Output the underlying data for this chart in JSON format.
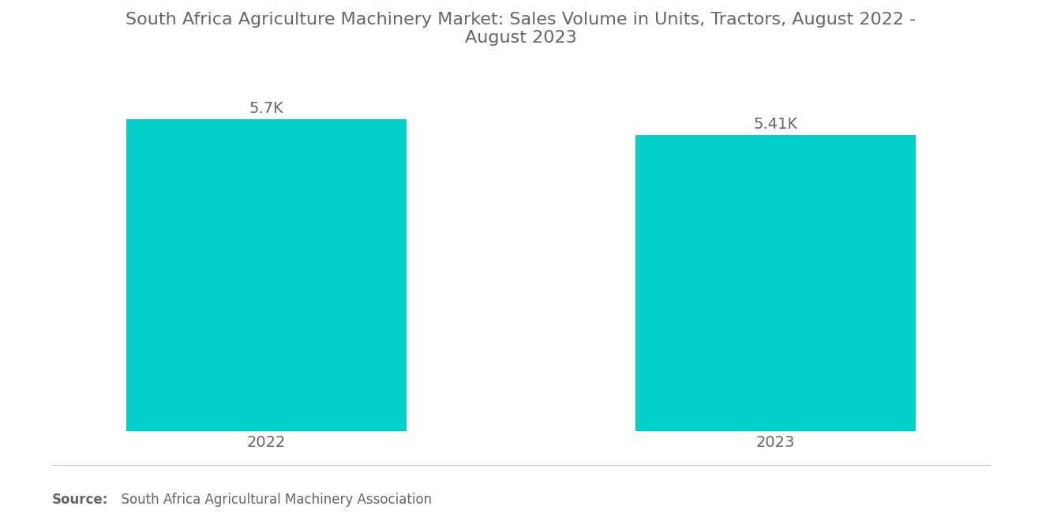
{
  "title": "South Africa Agriculture Machinery Market: Sales Volume in Units, Tractors, August 2022 -\nAugust 2023",
  "categories": [
    "2022",
    "2023"
  ],
  "values": [
    5700,
    5410
  ],
  "labels": [
    "5.7K",
    "5.41K"
  ],
  "bar_color": "#00D0C8",
  "background_color": "#ffffff",
  "title_color": "#666666",
  "label_color": "#666666",
  "tick_color": "#666666",
  "source_bold": "Source:",
  "source_text": "  South Africa Agricultural Machinery Association",
  "ylim": [
    0,
    6600
  ],
  "bar_width": 0.55,
  "x_positions": [
    0.5,
    1.5
  ],
  "xlim": [
    0.0,
    2.0
  ],
  "title_fontsize": 16,
  "label_fontsize": 14,
  "tick_fontsize": 14,
  "source_fontsize": 12
}
